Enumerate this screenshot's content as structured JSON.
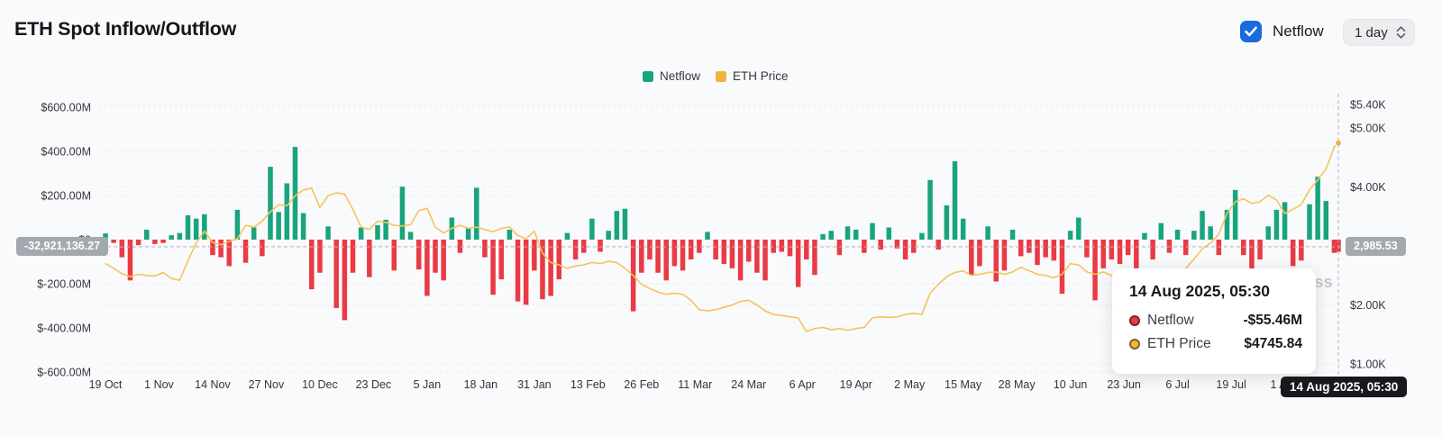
{
  "header": {
    "title": "ETH Spot Inflow/Outflow",
    "netflow_checkbox_label": "Netflow",
    "netflow_checkbox_checked": true,
    "interval_value": "1 day"
  },
  "legend": {
    "items": [
      {
        "label": "Netflow",
        "color": "#18a47e"
      },
      {
        "label": "ETH Price",
        "color": "#f0b53e"
      }
    ]
  },
  "crosshair": {
    "netflow_axis_value": "-32,921,136.27",
    "price_axis_value": "2,985.53",
    "date_value": "14 Aug 2025, 05:30"
  },
  "tooltip": {
    "title": "14 Aug 2025, 05:30",
    "rows": [
      {
        "label": "Netflow",
        "value": "-$55.46M",
        "color": "#ea3a45"
      },
      {
        "label": "ETH Price",
        "value": "$4745.84",
        "color": "#f0b53e"
      }
    ]
  },
  "watermark": "coinglass",
  "colors": {
    "positive": "#18a47e",
    "negative": "#ea3a45",
    "price_line": "#f6c35c",
    "price_marker": "#f0b53e",
    "accent_blue": "#1a6bdd",
    "grid": "#ebecef",
    "crosshair": "#b3b6bc",
    "axis_text": "#33363c"
  },
  "chart_data": {
    "type": "bar+line",
    "title": "ETH Spot Inflow/Outflow",
    "x_start_date": "2024-10-19",
    "x_end_date": "2025-08-14",
    "sample_interval_days": 2,
    "x_tick_labels": [
      "19 Oct",
      "1 Nov",
      "14 Nov",
      "27 Nov",
      "10 Dec",
      "23 Dec",
      "5 Jan",
      "18 Jan",
      "31 Jan",
      "13 Feb",
      "26 Feb",
      "11 Mar",
      "24 Mar",
      "6 Apr",
      "19 Apr",
      "2 May",
      "15 May",
      "28 May",
      "10 Jun",
      "23 Jun",
      "6 Jul",
      "19 Jul",
      "1 Aug"
    ],
    "x_tick_day_offsets": [
      0,
      13,
      26,
      39,
      52,
      65,
      78,
      91,
      104,
      117,
      130,
      143,
      156,
      169,
      182,
      195,
      208,
      221,
      234,
      247,
      260,
      273,
      286
    ],
    "left_axis": {
      "tick_labels": [
        "$600.00M",
        "$400.00M",
        "$200.00M",
        "$0",
        "$-200.00M",
        "$-400.00M",
        "$-600.00M"
      ],
      "tick_values_M": [
        600,
        400,
        200,
        0,
        -200,
        -400,
        -600
      ]
    },
    "right_axis": {
      "tick_labels": [
        "$5.40K",
        "$5.00K",
        "$4.00K",
        "$3.00K",
        "$2.00K",
        "$1.00K"
      ],
      "tick_values_K": [
        5.4,
        5.0,
        4.0,
        3.0,
        2.0,
        1.0
      ]
    },
    "series": [
      {
        "name": "Netflow",
        "type": "bar",
        "unit": "USD millions",
        "positive_color": "#18a47e",
        "negative_color": "#ea3a45",
        "values": [
          28,
          -15,
          -80,
          -185,
          -25,
          45,
          -20,
          -15,
          20,
          30,
          110,
          95,
          115,
          -70,
          -80,
          -120,
          135,
          -105,
          55,
          -75,
          330,
          125,
          255,
          420,
          120,
          -225,
          -150,
          60,
          -310,
          -365,
          -150,
          55,
          -170,
          65,
          90,
          -140,
          240,
          35,
          -135,
          -255,
          -150,
          -185,
          100,
          -60,
          55,
          235,
          -80,
          -250,
          -180,
          45,
          -280,
          -295,
          -140,
          -270,
          -255,
          -180,
          30,
          -90,
          -60,
          95,
          -55,
          40,
          130,
          140,
          -325,
          -150,
          -90,
          -150,
          -185,
          -120,
          -140,
          -90,
          -60,
          35,
          -90,
          -110,
          -130,
          -185,
          -100,
          -150,
          -185,
          -60,
          -55,
          -75,
          -215,
          -90,
          -160,
          25,
          40,
          -70,
          60,
          45,
          -60,
          75,
          -45,
          55,
          -40,
          -90,
          -60,
          30,
          270,
          -45,
          155,
          355,
          95,
          -160,
          -120,
          60,
          -190,
          -140,
          45,
          -75,
          -60,
          -115,
          -80,
          -95,
          -245,
          40,
          100,
          -80,
          -275,
          -130,
          -90,
          -110,
          -70,
          -130,
          30,
          -90,
          75,
          -60,
          45,
          -70,
          40,
          130,
          60,
          -70,
          135,
          225,
          -70,
          -155,
          -90,
          60,
          135,
          170,
          -120,
          -95,
          160,
          285,
          175,
          -60,
          -55.46
        ]
      },
      {
        "name": "ETH Price",
        "type": "line",
        "unit": "USD thousands",
        "color": "#f6c35c",
        "values": [
          2.7,
          2.62,
          2.53,
          2.48,
          2.52,
          2.5,
          2.49,
          2.55,
          2.45,
          2.42,
          2.75,
          3.05,
          3.25,
          3.06,
          3.02,
          3.08,
          3.12,
          3.35,
          3.32,
          3.42,
          3.58,
          3.7,
          3.68,
          3.85,
          3.95,
          3.98,
          3.65,
          3.85,
          3.9,
          3.88,
          3.62,
          3.32,
          3.28,
          3.42,
          3.4,
          3.35,
          3.34,
          3.36,
          3.6,
          3.64,
          3.32,
          3.22,
          3.3,
          3.35,
          3.3,
          3.32,
          3.28,
          3.24,
          3.3,
          3.32,
          3.18,
          3.12,
          3.25,
          2.88,
          2.72,
          2.68,
          2.62,
          2.66,
          2.68,
          2.72,
          2.7,
          2.74,
          2.72,
          2.62,
          2.5,
          2.35,
          2.28,
          2.22,
          2.18,
          2.2,
          2.18,
          2.08,
          1.92,
          1.9,
          1.92,
          1.96,
          2.0,
          2.06,
          2.08,
          2.0,
          1.9,
          1.84,
          1.82,
          1.8,
          1.78,
          1.55,
          1.6,
          1.62,
          1.58,
          1.6,
          1.57,
          1.6,
          1.62,
          1.78,
          1.8,
          1.79,
          1.8,
          1.84,
          1.86,
          1.84,
          2.2,
          2.35,
          2.48,
          2.55,
          2.58,
          2.5,
          2.52,
          2.55,
          2.56,
          2.52,
          2.56,
          2.64,
          2.58,
          2.52,
          2.5,
          2.46,
          2.52,
          2.7,
          2.68,
          2.56,
          2.52,
          2.56,
          2.5,
          2.28,
          2.4,
          2.44,
          2.48,
          2.46,
          2.44,
          2.5,
          2.56,
          2.62,
          2.78,
          2.95,
          3.05,
          3.2,
          3.55,
          3.75,
          3.8,
          3.72,
          3.75,
          3.86,
          3.78,
          3.55,
          3.62,
          3.7,
          3.95,
          4.12,
          4.3,
          4.68,
          4.7458
        ]
      }
    ],
    "hovered_point": {
      "date": "14 Aug 2025, 05:30",
      "netflow": "-$55.46M",
      "eth_price": "$4745.84"
    }
  }
}
